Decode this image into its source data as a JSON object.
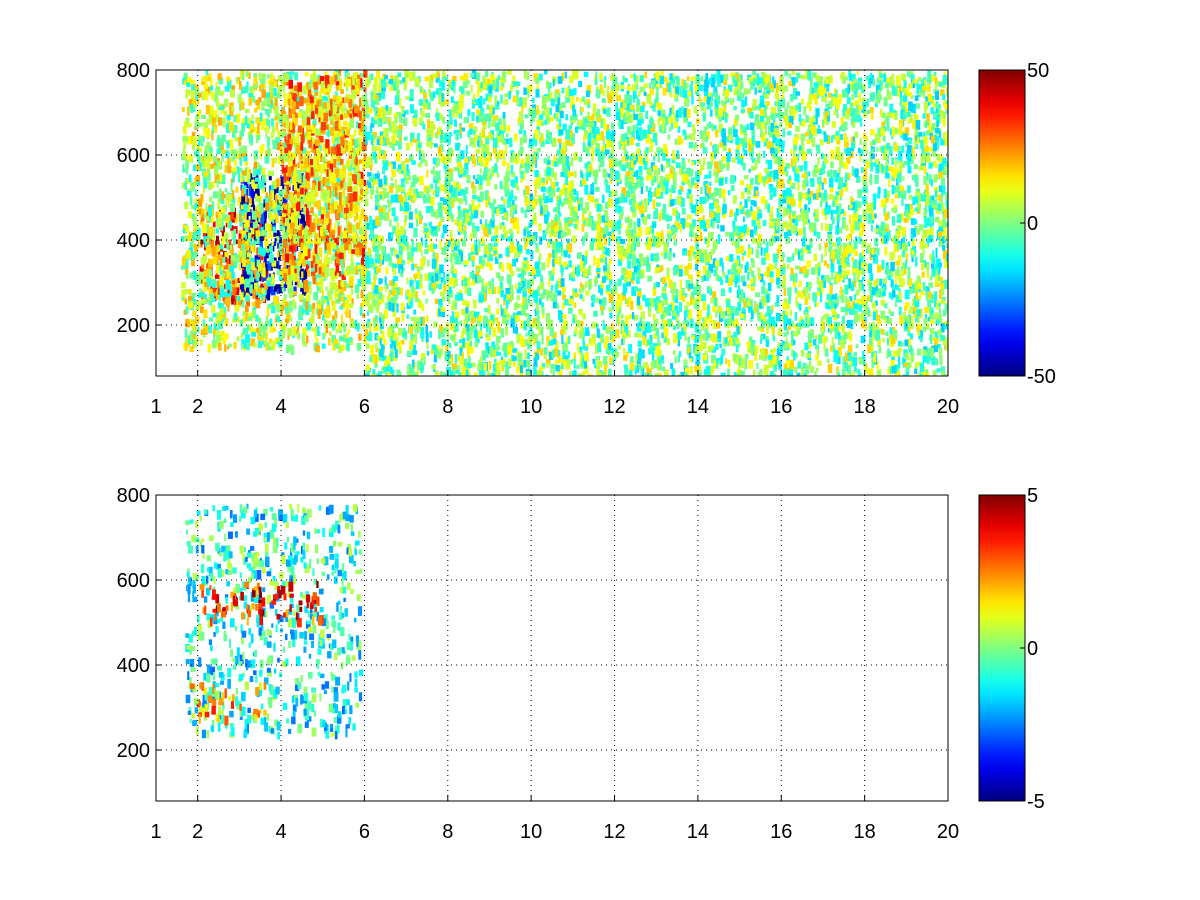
{
  "chart_data": [
    {
      "type": "heatmap",
      "title": "",
      "xlabel": "",
      "ylabel": "",
      "xlim": [
        1,
        20
      ],
      "ylim": [
        80,
        800
      ],
      "x_ticks": [
        "1",
        "2",
        "4",
        "6",
        "8",
        "10",
        "12",
        "14",
        "16",
        "18",
        "20"
      ],
      "y_ticks": [
        "200",
        "400",
        "600",
        "800"
      ],
      "grid": true,
      "colormap": "jet",
      "colorbar": {
        "min": -50,
        "max": 50,
        "ticks": [
          "50",
          "0",
          "-50"
        ]
      },
      "regions": [
        {
          "x": [
            2.0,
            3.6
          ],
          "y": [
            260,
            480
          ],
          "value": 30
        },
        {
          "x": [
            3.0,
            4.6
          ],
          "y": [
            280,
            560
          ],
          "value": -45
        },
        {
          "x": [
            1.6,
            6.0
          ],
          "y": [
            150,
            800
          ],
          "value": 5
        },
        {
          "x": [
            4.0,
            6.0
          ],
          "y": [
            300,
            800
          ],
          "value": 20
        },
        {
          "x": [
            6.0,
            20.0
          ],
          "y": [
            80,
            800
          ],
          "value": 0
        }
      ]
    },
    {
      "type": "heatmap",
      "title": "",
      "xlabel": "",
      "ylabel": "",
      "xlim": [
        1,
        20
      ],
      "ylim": [
        80,
        800
      ],
      "x_ticks": [
        "1",
        "2",
        "4",
        "6",
        "8",
        "10",
        "12",
        "14",
        "16",
        "18",
        "20"
      ],
      "y_ticks": [
        "200",
        "400",
        "600",
        "800"
      ],
      "grid": true,
      "colormap": "jet",
      "colorbar": {
        "min": -5,
        "max": 5,
        "ticks": [
          "5",
          "0",
          "-5"
        ]
      },
      "regions": [
        {
          "x": [
            1.7,
            5.9
          ],
          "y": [
            240,
            780
          ],
          "value": -1
        },
        {
          "x": [
            2.0,
            5.0
          ],
          "y": [
            510,
            600
          ],
          "value": 3.5
        },
        {
          "x": [
            1.8,
            3.6
          ],
          "y": [
            280,
            360
          ],
          "value": 2
        }
      ]
    }
  ]
}
